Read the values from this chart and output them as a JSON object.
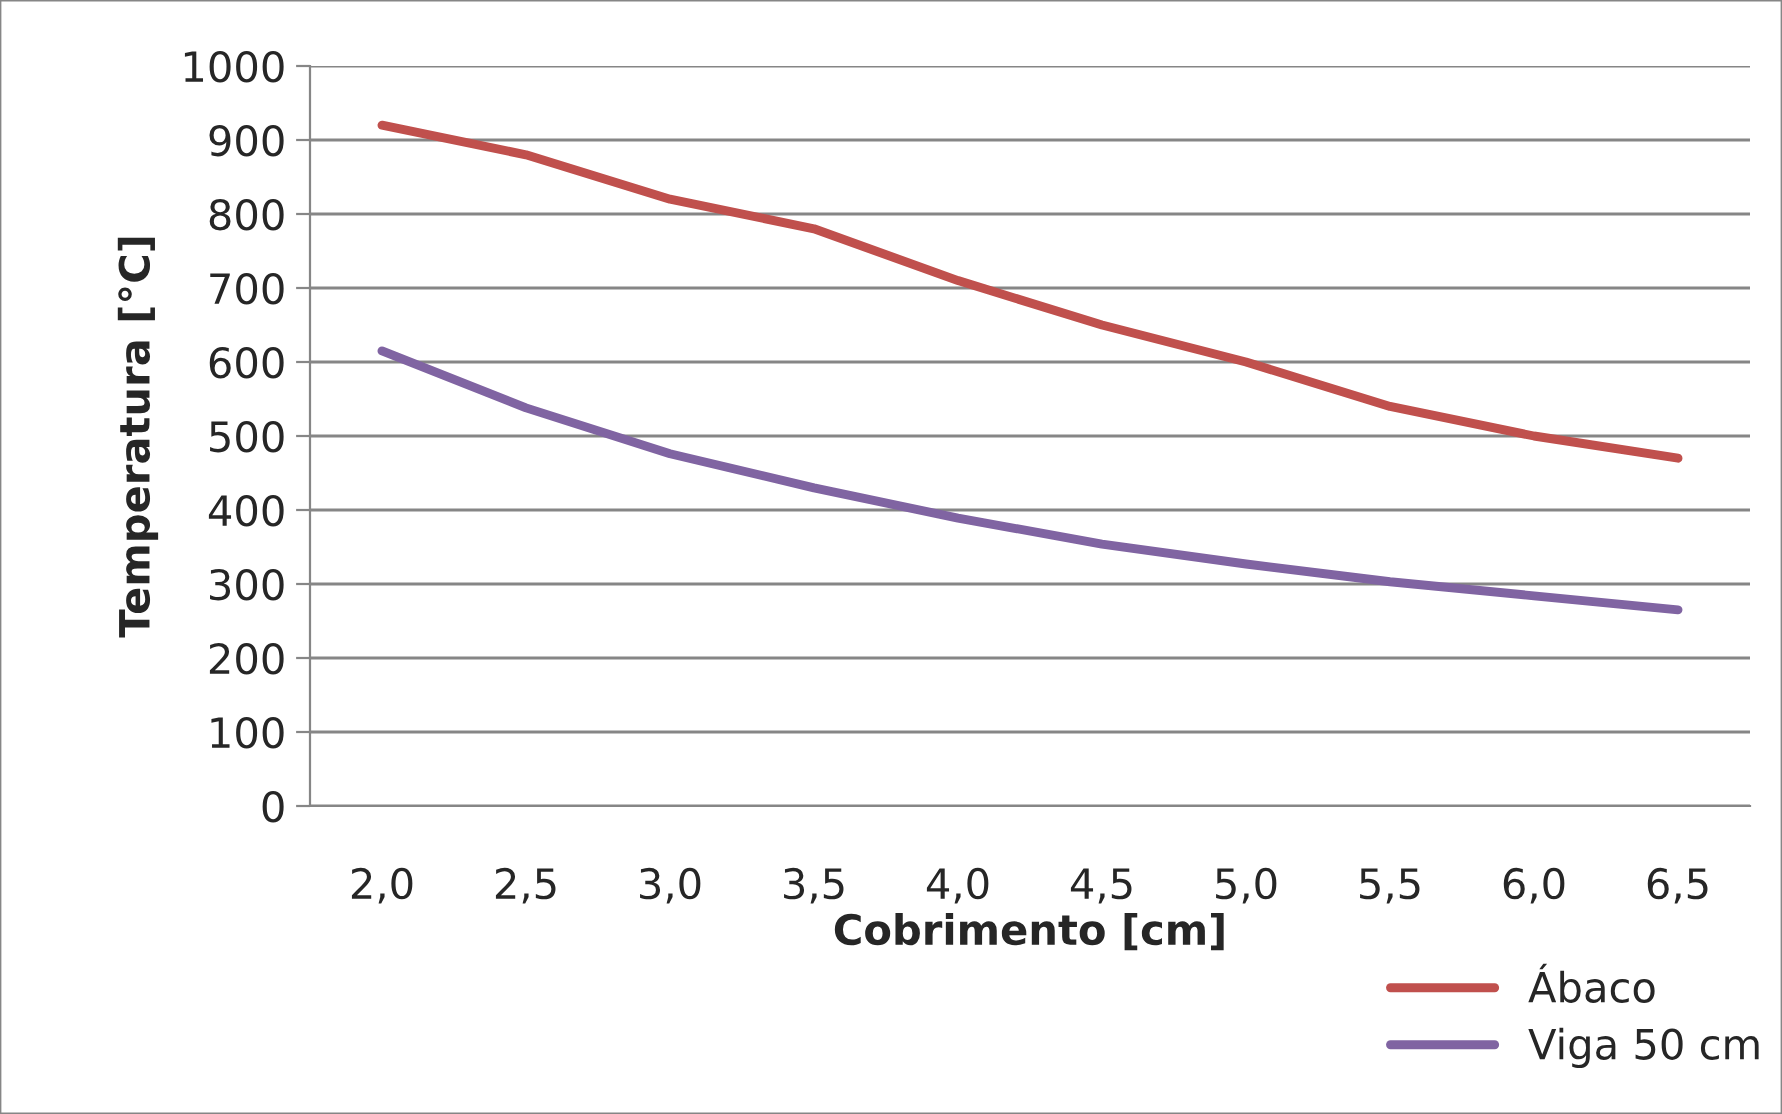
{
  "chart_data": {
    "type": "line",
    "xlabel": "Cobrimento [cm]",
    "ylabel": "Temperatura [°C]",
    "categories": [
      "2,0",
      "2,5",
      "3,0",
      "3,5",
      "4,0",
      "4,5",
      "5,0",
      "5,5",
      "6,0",
      "6,5"
    ],
    "series": [
      {
        "name": "Ábaco",
        "color": "#c0504d",
        "values": [
          920,
          880,
          820,
          780,
          710,
          650,
          600,
          540,
          500,
          470
        ]
      },
      {
        "name": "Viga 50 cm",
        "color": "#8064a2",
        "values": [
          615,
          538,
          476,
          430,
          389,
          354,
          327,
          303,
          284,
          265
        ]
      }
    ],
    "ylim": [
      0,
      1000
    ],
    "yticks": [
      0,
      100,
      200,
      300,
      400,
      500,
      600,
      700,
      800,
      900,
      1000
    ],
    "grid": "y",
    "legend": "bottom right",
    "marker": "none",
    "line_style": "solid"
  }
}
